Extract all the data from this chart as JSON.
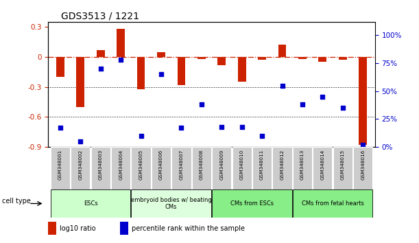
{
  "title": "GDS3513 / 1221",
  "samples": [
    "GSM348001",
    "GSM348002",
    "GSM348003",
    "GSM348004",
    "GSM348005",
    "GSM348006",
    "GSM348007",
    "GSM348008",
    "GSM348009",
    "GSM348010",
    "GSM348011",
    "GSM348012",
    "GSM348013",
    "GSM348014",
    "GSM348015",
    "GSM348016"
  ],
  "log10_ratio": [
    -0.2,
    -0.5,
    0.07,
    0.28,
    -0.32,
    0.05,
    -0.28,
    -0.02,
    -0.08,
    -0.25,
    -0.03,
    0.12,
    -0.02,
    -0.05,
    -0.03,
    -0.88
  ],
  "percentile_rank": [
    17,
    5,
    70,
    78,
    10,
    65,
    17,
    38,
    18,
    18,
    10,
    55,
    38,
    45,
    35,
    2
  ],
  "ylim_left": [
    -0.9,
    0.35
  ],
  "ylim_right": [
    0,
    112
  ],
  "yticks_left": [
    -0.9,
    -0.6,
    -0.3,
    0.0,
    0.3
  ],
  "yticks_right": [
    0,
    25,
    50,
    75,
    100
  ],
  "ytick_right_labels": [
    "0%",
    "25%",
    "50%",
    "75%",
    "100%"
  ],
  "hline_values": [
    -0.3,
    -0.6
  ],
  "bar_color": "#cc2200",
  "scatter_color": "#0000cc",
  "dashed_line_color": "#cc2200",
  "cell_type_groups": [
    {
      "label": "ESCs",
      "start": 0,
      "end": 3,
      "color": "#ccffcc"
    },
    {
      "label": "embryoid bodies w/ beating\nCMs",
      "start": 4,
      "end": 7,
      "color": "#ddffdd"
    },
    {
      "label": "CMs from ESCs",
      "start": 8,
      "end": 11,
      "color": "#88ee88"
    },
    {
      "label": "CMs from fetal hearts",
      "start": 12,
      "end": 15,
      "color": "#88ee88"
    }
  ],
  "legend_bar_label": "log10 ratio",
  "legend_scatter_label": "percentile rank within the sample",
  "cell_type_label": "cell type",
  "tick_box_color": "#cccccc",
  "tick_box_edge": "#aaaaaa"
}
